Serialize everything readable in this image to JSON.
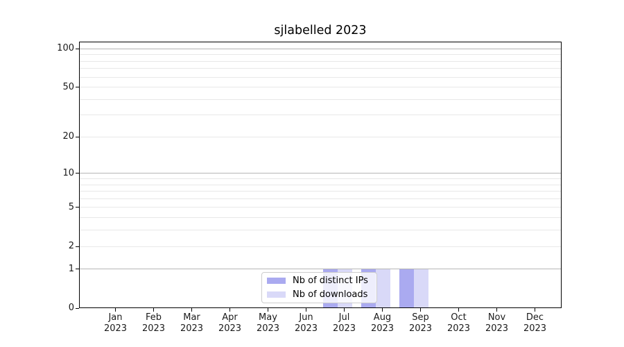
{
  "chart_data": {
    "type": "bar",
    "title": "sjlabelled 2023",
    "xlabel": "",
    "ylabel": "",
    "categories": [
      "Jan 2023",
      "Feb 2023",
      "Mar 2023",
      "Apr 2023",
      "May 2023",
      "Jun 2023",
      "Jul 2023",
      "Aug 2023",
      "Sep 2023",
      "Oct 2023",
      "Nov 2023",
      "Dec 2023"
    ],
    "series": [
      {
        "name": "Nb of distinct IPs",
        "color": "#aaaaf0",
        "values": [
          0,
          0,
          0,
          0,
          0,
          0,
          1,
          1,
          1,
          0,
          0,
          0
        ]
      },
      {
        "name": "Nb of downloads",
        "color": "#d9d9f8",
        "values": [
          0,
          0,
          0,
          0,
          0,
          0,
          1,
          1,
          1,
          0,
          0,
          0
        ]
      }
    ],
    "yscale": "log1p",
    "ylim": [
      0,
      113
    ],
    "y_tick_labels": [
      0,
      1,
      2,
      5,
      10,
      20,
      50,
      100
    ],
    "y_major_gridlines": [
      1,
      10,
      100
    ],
    "y_minor_gridlines": [
      2,
      3,
      4,
      5,
      6,
      7,
      8,
      9,
      20,
      30,
      40,
      50,
      60,
      70,
      80,
      90
    ],
    "grid": true,
    "legend_position": "lower center"
  },
  "style": {
    "major_grid_color": "#b5b5b5",
    "minor_grid_color": "#e8e8e8",
    "axis_color": "#000000",
    "text_color": "#1a1a1a",
    "legend_border_color": "#cccccc",
    "background_color": "#ffffff"
  }
}
